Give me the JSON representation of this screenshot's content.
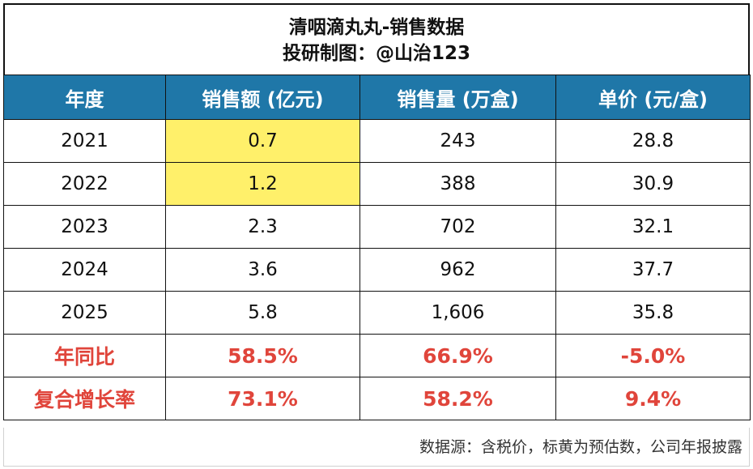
{
  "title": "清咽滴丸丸-销售数据",
  "subtitle": "投研制图：@山治123",
  "columns": [
    "年度",
    "销售额 (亿元)",
    "销售量 (万盒)",
    "单价 (元/盒)"
  ],
  "rows": [
    {
      "year": "2021",
      "sales": "0.7",
      "volume": "243",
      "price": "28.8"
    },
    {
      "year": "2022",
      "sales": "1.2",
      "volume": "388",
      "price": "30.9"
    },
    {
      "year": "2023",
      "sales": "2.3",
      "volume": "702",
      "price": "32.1"
    },
    {
      "year": "2024",
      "sales": "3.6",
      "volume": "962",
      "price": "37.7"
    },
    {
      "year": "2025",
      "sales": "5.8",
      "volume": "1,606",
      "price": "35.8"
    }
  ],
  "yoy": {
    "label": "年同比",
    "sales": "58.5%",
    "volume": "66.9%",
    "price": "-5.0%"
  },
  "cagr": {
    "label": "复合增长率",
    "sales": "73.1%",
    "volume": "58.2%",
    "price": "9.4%"
  },
  "footer": "数据源：含税价，标黄为预估数，公司年报披露",
  "colors": {
    "header_bg": "#1f77a8",
    "highlight": "#fff06a",
    "emphasis": "#e0453b"
  },
  "chart_data": {
    "type": "table",
    "title": "清咽滴丸丸-销售数据",
    "subtitle": "投研制图：@山治123",
    "columns": [
      "年度",
      "销售额 (亿元)",
      "销售量 (万盒)",
      "单价 (元/盒)"
    ],
    "categories": [
      "2021",
      "2022",
      "2023",
      "2024",
      "2025"
    ],
    "series": [
      {
        "name": "销售额 (亿元)",
        "values": [
          0.7,
          1.2,
          2.3,
          3.6,
          5.8
        ]
      },
      {
        "name": "销售量 (万盒)",
        "values": [
          243,
          388,
          702,
          962,
          1606
        ]
      },
      {
        "name": "单价 (元/盒)",
        "values": [
          28.8,
          30.9,
          32.1,
          37.7,
          35.8
        ]
      }
    ],
    "highlighted_cells": [
      "2021 销售额",
      "2022 销售额"
    ],
    "summary_rows": [
      {
        "label": "年同比",
        "values": [
          "58.5%",
          "66.9%",
          "-5.0%"
        ]
      },
      {
        "label": "复合增长率",
        "values": [
          "73.1%",
          "58.2%",
          "9.4%"
        ]
      }
    ]
  }
}
